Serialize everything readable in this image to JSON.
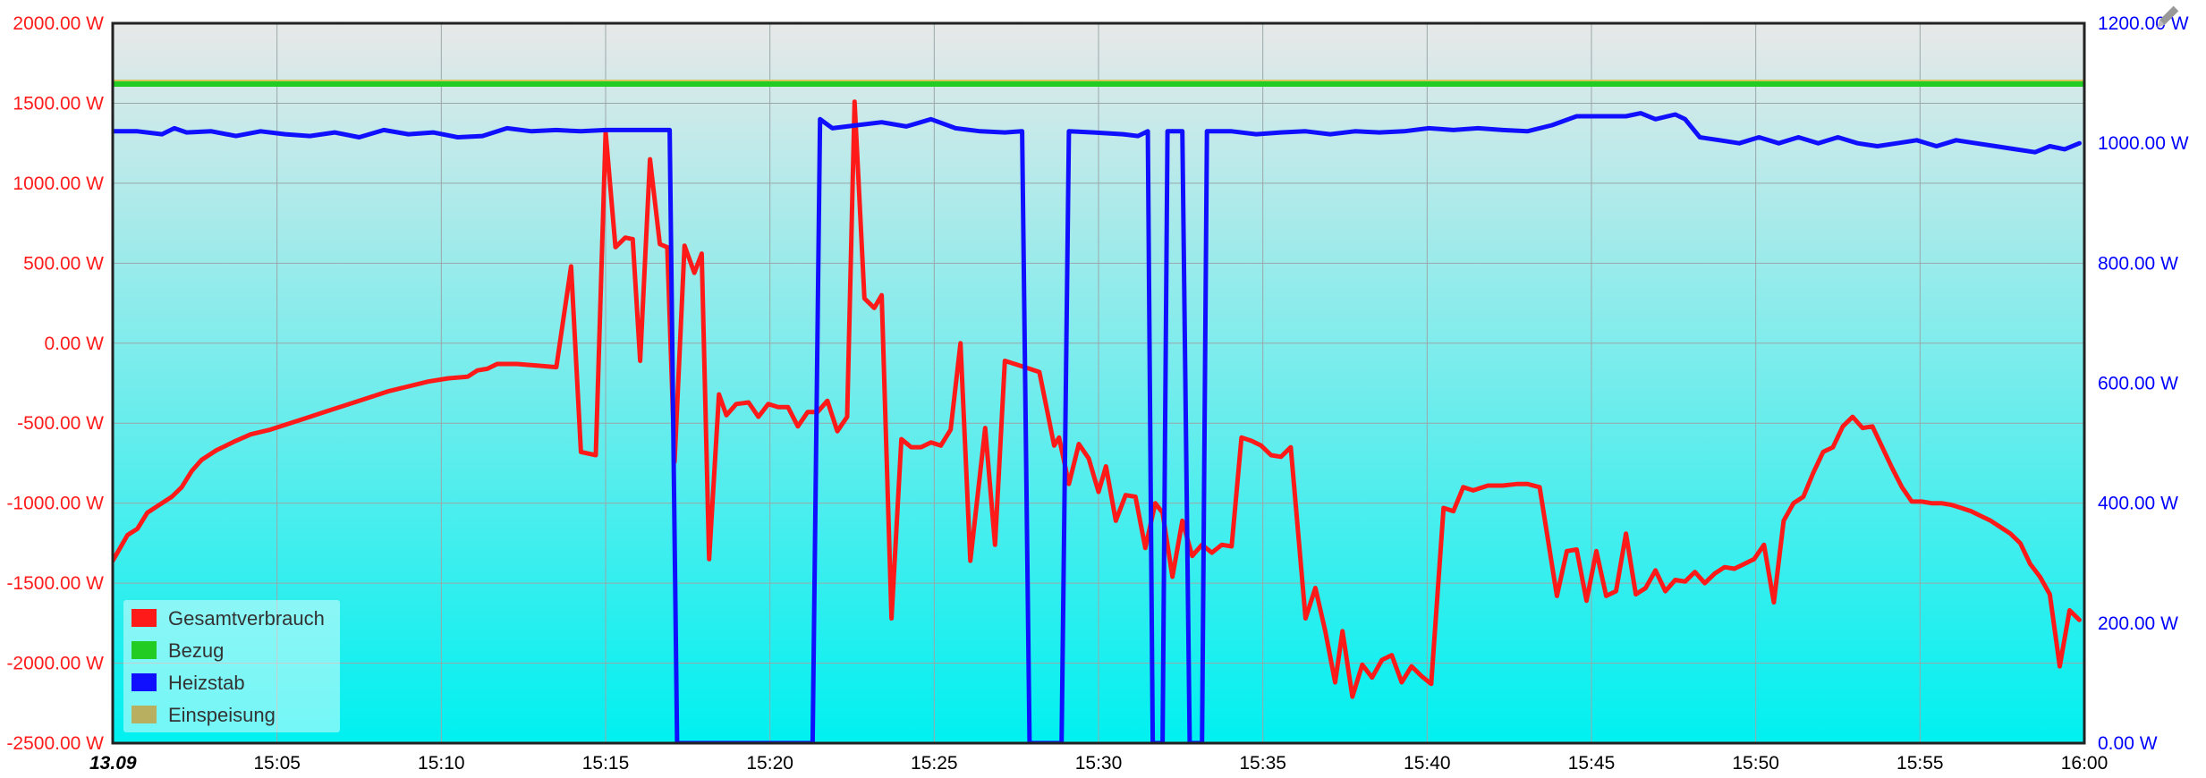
{
  "chart_data": {
    "type": "line",
    "title": "",
    "x": {
      "tick_labels": [
        "13.09",
        "15:05",
        "15:10",
        "15:15",
        "15:20",
        "15:25",
        "15:30",
        "15:35",
        "15:40",
        "15:45",
        "15:50",
        "15:55",
        "16:00"
      ],
      "range": [
        "15:00",
        "16:00"
      ]
    },
    "y_left": {
      "unit": "W",
      "ylim": [
        -2500,
        2000
      ],
      "tick_labels": [
        "2000.00 W",
        "1500.00 W",
        "1000.00 W",
        "500.00 W",
        "0.00 W",
        "-500.00 W",
        "-1000.00 W",
        "-1500.00 W",
        "-2000.00 W",
        "-2500.00 W"
      ],
      "color": "#ff0000"
    },
    "y_right": {
      "unit": "W",
      "ylim": [
        0,
        1200
      ],
      "tick_labels": [
        "1200.00 W",
        "1000.00 W",
        "800.00 W",
        "600.00 W",
        "400.00 W",
        "200.00 W",
        "0.00 W"
      ],
      "color": "#0000ff"
    },
    "grid": true,
    "legend_position": "bottom-left",
    "background_gradient": [
      "#e8e8e8",
      "#00f0f0"
    ],
    "series": [
      {
        "name": "Gesamtverbrauch",
        "axis": "left",
        "color": "#ff1a1a",
        "points": [
          [
            0.0,
            -1360
          ],
          [
            0.6,
            -1200
          ],
          [
            1.0,
            -1160
          ],
          [
            1.4,
            -1060
          ],
          [
            1.8,
            -1020
          ],
          [
            2.4,
            -960
          ],
          [
            2.8,
            -900
          ],
          [
            3.2,
            -800
          ],
          [
            3.6,
            -730
          ],
          [
            4.2,
            -670
          ],
          [
            5.0,
            -610
          ],
          [
            5.6,
            -570
          ],
          [
            6.4,
            -540
          ],
          [
            7.2,
            -500
          ],
          [
            8.0,
            -460
          ],
          [
            8.8,
            -420
          ],
          [
            9.6,
            -380
          ],
          [
            10.4,
            -340
          ],
          [
            11.2,
            -300
          ],
          [
            12.0,
            -270
          ],
          [
            12.8,
            -240
          ],
          [
            13.6,
            -220
          ],
          [
            14.4,
            -210
          ],
          [
            14.8,
            -170
          ],
          [
            15.2,
            -160
          ],
          [
            15.6,
            -130
          ],
          [
            16.4,
            -130
          ],
          [
            17.2,
            -140
          ],
          [
            18.0,
            -150
          ],
          [
            18.6,
            480
          ],
          [
            19.0,
            -680
          ],
          [
            19.6,
            -700
          ],
          [
            20.0,
            1320
          ],
          [
            20.4,
            600
          ],
          [
            20.8,
            660
          ],
          [
            21.1,
            650
          ],
          [
            21.4,
            -110
          ],
          [
            21.8,
            1150
          ],
          [
            22.2,
            620
          ],
          [
            22.5,
            600
          ],
          [
            22.8,
            -740
          ],
          [
            23.2,
            610
          ],
          [
            23.6,
            440
          ],
          [
            23.9,
            560
          ],
          [
            24.2,
            -1350
          ],
          [
            24.6,
            -320
          ],
          [
            24.9,
            -450
          ],
          [
            25.3,
            -380
          ],
          [
            25.8,
            -370
          ],
          [
            26.2,
            -460
          ],
          [
            26.6,
            -380
          ],
          [
            27.0,
            -400
          ],
          [
            27.4,
            -400
          ],
          [
            27.8,
            -520
          ],
          [
            28.2,
            -430
          ],
          [
            28.6,
            -430
          ],
          [
            29.0,
            -360
          ],
          [
            29.4,
            -550
          ],
          [
            29.8,
            -460
          ],
          [
            30.1,
            1510
          ],
          [
            30.5,
            280
          ],
          [
            30.9,
            220
          ],
          [
            31.2,
            300
          ],
          [
            31.6,
            -1720
          ],
          [
            32.0,
            -600
          ],
          [
            32.4,
            -650
          ],
          [
            32.8,
            -650
          ],
          [
            33.2,
            -620
          ],
          [
            33.6,
            -640
          ],
          [
            34.0,
            -540
          ],
          [
            34.4,
            0
          ],
          [
            34.8,
            -1360
          ],
          [
            35.4,
            -530
          ],
          [
            35.8,
            -1260
          ],
          [
            36.2,
            -110
          ],
          [
            36.6,
            -130
          ],
          [
            37.2,
            -160
          ],
          [
            37.6,
            -180
          ],
          [
            38.2,
            -640
          ],
          [
            38.4,
            -590
          ],
          [
            38.8,
            -880
          ],
          [
            39.2,
            -630
          ],
          [
            39.6,
            -720
          ],
          [
            40.0,
            -930
          ],
          [
            40.3,
            -770
          ],
          [
            40.7,
            -1110
          ],
          [
            41.1,
            -950
          ],
          [
            41.5,
            -960
          ],
          [
            41.9,
            -1280
          ],
          [
            42.3,
            -1000
          ],
          [
            42.6,
            -1060
          ],
          [
            43.0,
            -1460
          ],
          [
            43.4,
            -1110
          ],
          [
            43.8,
            -1330
          ],
          [
            44.2,
            -1260
          ],
          [
            44.6,
            -1310
          ],
          [
            45.0,
            -1260
          ],
          [
            45.4,
            -1270
          ],
          [
            45.8,
            -590
          ],
          [
            46.2,
            -610
          ],
          [
            46.6,
            -640
          ],
          [
            47.0,
            -700
          ],
          [
            47.4,
            -710
          ],
          [
            47.8,
            -650
          ],
          [
            48.4,
            -1720
          ],
          [
            48.8,
            -1530
          ],
          [
            49.2,
            -1800
          ],
          [
            49.6,
            -2120
          ],
          [
            49.9,
            -1800
          ],
          [
            50.3,
            -2210
          ],
          [
            50.7,
            -2010
          ],
          [
            51.1,
            -2090
          ],
          [
            51.5,
            -1980
          ],
          [
            51.9,
            -1950
          ],
          [
            52.3,
            -2120
          ],
          [
            52.7,
            -2020
          ],
          [
            53.1,
            -2080
          ],
          [
            53.5,
            -2130
          ],
          [
            54.0,
            -1030
          ],
          [
            54.4,
            -1050
          ],
          [
            54.8,
            -900
          ],
          [
            55.2,
            -920
          ],
          [
            55.8,
            -890
          ],
          [
            56.4,
            -890
          ],
          [
            57.0,
            -880
          ],
          [
            57.4,
            -880
          ],
          [
            57.9,
            -900
          ],
          [
            58.6,
            -1580
          ],
          [
            59.0,
            -1300
          ],
          [
            59.4,
            -1290
          ],
          [
            59.8,
            -1610
          ],
          [
            60.2,
            -1300
          ],
          [
            60.6,
            -1580
          ],
          [
            61.0,
            -1550
          ],
          [
            61.4,
            -1190
          ],
          [
            61.8,
            -1570
          ],
          [
            62.2,
            -1530
          ],
          [
            62.6,
            -1420
          ],
          [
            63.0,
            -1550
          ],
          [
            63.4,
            -1480
          ],
          [
            63.8,
            -1490
          ],
          [
            64.2,
            -1430
          ],
          [
            64.6,
            -1500
          ],
          [
            65.0,
            -1440
          ],
          [
            65.4,
            -1400
          ],
          [
            65.8,
            -1410
          ],
          [
            66.2,
            -1380
          ],
          [
            66.6,
            -1350
          ],
          [
            67.0,
            -1260
          ],
          [
            67.4,
            -1620
          ],
          [
            67.8,
            -1110
          ],
          [
            68.2,
            -1000
          ],
          [
            68.6,
            -960
          ],
          [
            69.0,
            -810
          ],
          [
            69.4,
            -680
          ],
          [
            69.8,
            -650
          ],
          [
            70.2,
            -520
          ],
          [
            70.6,
            -460
          ],
          [
            71.0,
            -530
          ],
          [
            71.4,
            -520
          ],
          [
            71.8,
            -650
          ],
          [
            72.2,
            -780
          ],
          [
            72.6,
            -900
          ],
          [
            73.0,
            -990
          ],
          [
            73.4,
            -990
          ],
          [
            73.8,
            -1000
          ],
          [
            74.2,
            -1000
          ],
          [
            74.6,
            -1010
          ],
          [
            75.0,
            -1030
          ],
          [
            75.4,
            -1050
          ],
          [
            75.8,
            -1080
          ],
          [
            76.2,
            -1110
          ],
          [
            76.6,
            -1150
          ],
          [
            77.0,
            -1190
          ],
          [
            77.4,
            -1250
          ],
          [
            77.8,
            -1380
          ],
          [
            78.2,
            -1460
          ],
          [
            78.6,
            -1570
          ],
          [
            79.0,
            -2020
          ],
          [
            79.4,
            -1670
          ],
          [
            79.8,
            -1730
          ]
        ]
      },
      {
        "name": "Bezug",
        "axis": "left",
        "color": "#22cc22",
        "points": [
          [
            0.0,
            1620
          ],
          [
            80.0,
            1620
          ]
        ]
      },
      {
        "name": "Heizstab",
        "axis": "right",
        "color": "#1010ff",
        "points": [
          [
            0.0,
            1020
          ],
          [
            1.0,
            1020
          ],
          [
            2.0,
            1015
          ],
          [
            2.5,
            1025
          ],
          [
            3.0,
            1018
          ],
          [
            4.0,
            1020
          ],
          [
            5.0,
            1012
          ],
          [
            6.0,
            1020
          ],
          [
            7.0,
            1015
          ],
          [
            8.0,
            1012
          ],
          [
            9.0,
            1018
          ],
          [
            10.0,
            1010
          ],
          [
            11.0,
            1022
          ],
          [
            12.0,
            1015
          ],
          [
            13.0,
            1018
          ],
          [
            14.0,
            1010
          ],
          [
            15.0,
            1012
          ],
          [
            16.0,
            1025
          ],
          [
            17.0,
            1020
          ],
          [
            18.0,
            1022
          ],
          [
            19.0,
            1020
          ],
          [
            20.0,
            1022
          ],
          [
            21.5,
            1022
          ],
          [
            22.6,
            1022
          ],
          [
            22.9,
            0
          ],
          [
            28.4,
            0
          ],
          [
            28.7,
            1040
          ],
          [
            29.2,
            1025
          ],
          [
            30.2,
            1030
          ],
          [
            31.2,
            1035
          ],
          [
            32.2,
            1028
          ],
          [
            33.2,
            1040
          ],
          [
            34.2,
            1025
          ],
          [
            35.2,
            1020
          ],
          [
            36.2,
            1018
          ],
          [
            36.9,
            1020
          ],
          [
            37.2,
            0
          ],
          [
            38.5,
            0
          ],
          [
            38.8,
            1020
          ],
          [
            39.8,
            1018
          ],
          [
            41.0,
            1015
          ],
          [
            41.6,
            1012
          ],
          [
            42.0,
            1020
          ],
          [
            42.2,
            0
          ],
          [
            42.6,
            0
          ],
          [
            42.8,
            1020
          ],
          [
            43.4,
            1020
          ],
          [
            43.7,
            0
          ],
          [
            44.2,
            0
          ],
          [
            44.4,
            1020
          ],
          [
            45.4,
            1020
          ],
          [
            46.4,
            1015
          ],
          [
            47.4,
            1018
          ],
          [
            48.4,
            1020
          ],
          [
            49.4,
            1015
          ],
          [
            50.4,
            1020
          ],
          [
            51.4,
            1018
          ],
          [
            52.4,
            1020
          ],
          [
            53.4,
            1025
          ],
          [
            54.4,
            1022
          ],
          [
            55.4,
            1025
          ],
          [
            56.4,
            1022
          ],
          [
            57.4,
            1020
          ],
          [
            58.4,
            1030
          ],
          [
            59.4,
            1045
          ],
          [
            60.4,
            1045
          ],
          [
            61.4,
            1045
          ],
          [
            62.0,
            1050
          ],
          [
            62.6,
            1040
          ],
          [
            63.4,
            1048
          ],
          [
            63.8,
            1040
          ],
          [
            64.4,
            1010
          ],
          [
            65.2,
            1005
          ],
          [
            66.0,
            1000
          ],
          [
            66.8,
            1010
          ],
          [
            67.6,
            1000
          ],
          [
            68.4,
            1010
          ],
          [
            69.2,
            1000
          ],
          [
            70.0,
            1010
          ],
          [
            70.8,
            1000
          ],
          [
            71.6,
            995
          ],
          [
            72.4,
            1000
          ],
          [
            73.2,
            1005
          ],
          [
            74.0,
            995
          ],
          [
            74.8,
            1005
          ],
          [
            75.6,
            1000
          ],
          [
            76.4,
            995
          ],
          [
            77.2,
            990
          ],
          [
            78.0,
            985
          ],
          [
            78.6,
            995
          ],
          [
            79.2,
            990
          ],
          [
            79.8,
            1000
          ]
        ]
      },
      {
        "name": "Einspeisung",
        "axis": "left",
        "color": "#b8b060",
        "points": []
      }
    ]
  }
}
